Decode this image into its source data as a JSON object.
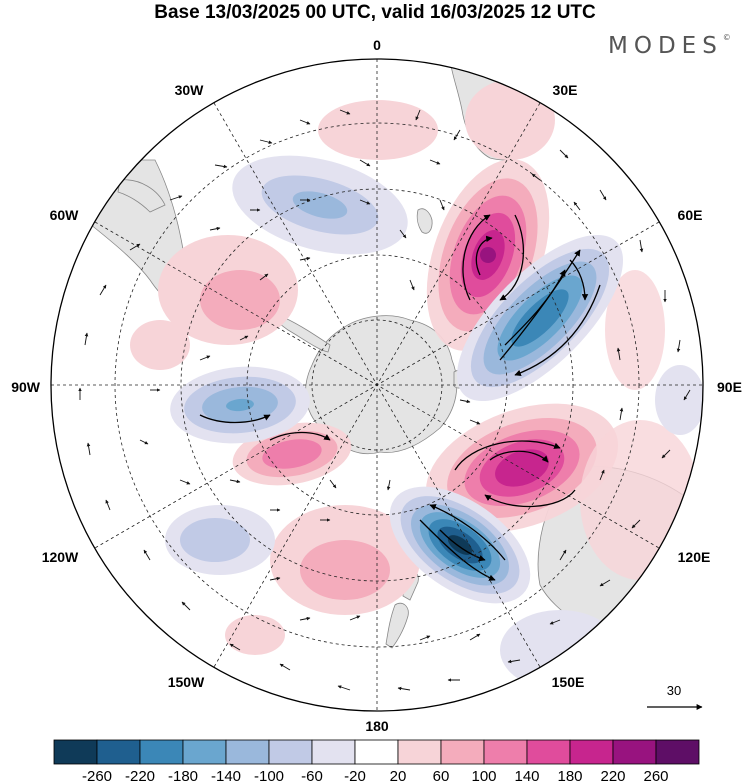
{
  "header": {
    "title": "Base 13/03/2025 00 UTC, valid 16/03/2025 12 UTC",
    "brand": "MODES",
    "brand_mark": "©"
  },
  "map": {
    "projection": "south polar stereographic",
    "longitude_labels": {
      "top": "0",
      "top_right_30": "30E",
      "top_right_60": "60E",
      "right": "90E",
      "bottom_right_120": "120E",
      "bottom_right_150": "150E",
      "bottom": "180",
      "bottom_left_150": "150W",
      "bottom_left_120": "120W",
      "left": "90W",
      "top_left_60": "60W",
      "top_left_30": "30W"
    },
    "wind_reference_vector": "30",
    "colors": {
      "land": "#e4e4e4",
      "grid": "#222222"
    }
  },
  "colorbar": {
    "ticks": [
      "-260",
      "-220",
      "-180",
      "-140",
      "-100",
      "-60",
      "-20",
      "20",
      "60",
      "100",
      "140",
      "180",
      "220",
      "260"
    ],
    "colors": [
      "#0f3a58",
      "#1f5f8f",
      "#3b87b7",
      "#6aa6cf",
      "#9ab8dc",
      "#c1cae6",
      "#e3e2f0",
      "#ffffff",
      "#f7d4d8",
      "#f4acbc",
      "#ee7eab",
      "#e04c9c",
      "#c7258e",
      "#98137f",
      "#5e0e66"
    ]
  }
}
